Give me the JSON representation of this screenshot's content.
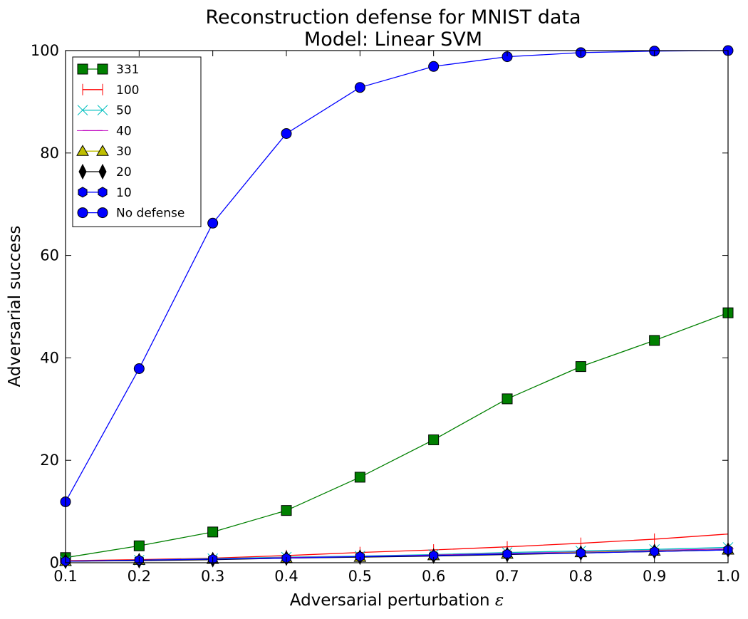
{
  "chart_data": {
    "type": "line",
    "title": "Reconstruction defense for MNIST data",
    "subtitle": "Model: Linear SVM",
    "xlabel": "Adversarial perturbation",
    "xlabel_symbol": "ε",
    "ylabel": "Adversarial success",
    "xlim": [
      0.1,
      1.0
    ],
    "ylim": [
      0,
      100
    ],
    "xticks": [
      "0.1",
      "0.2",
      "0.3",
      "0.4",
      "0.5",
      "0.6",
      "0.7",
      "0.8",
      "0.9",
      "1.0"
    ],
    "yticks": [
      "0",
      "20",
      "40",
      "60",
      "80",
      "100"
    ],
    "grid": false,
    "legend_position": "top-left",
    "x": [
      0.1,
      0.2,
      0.3,
      0.4,
      0.5,
      0.6,
      0.7,
      0.8,
      0.9,
      1.0
    ],
    "series": [
      {
        "name": "331",
        "color": "#008000",
        "marker": "square",
        "values": [
          1.0,
          3.3,
          6.0,
          10.2,
          16.7,
          24.0,
          32.0,
          38.3,
          43.4,
          48.8
        ]
      },
      {
        "name": "100",
        "color": "#ff0000",
        "marker": "vline",
        "values": [
          0.4,
          0.6,
          0.9,
          1.4,
          2.0,
          2.5,
          3.1,
          3.8,
          4.6,
          5.6
        ]
      },
      {
        "name": "50",
        "color": "#00bfbf",
        "marker": "x",
        "values": [
          0.3,
          0.5,
          0.8,
          1.1,
          1.3,
          1.6,
          2.0,
          2.3,
          2.6,
          3.0
        ]
      },
      {
        "name": "40",
        "color": "#bf00bf",
        "marker": "hline",
        "values": [
          0.3,
          0.5,
          0.7,
          1.0,
          1.2,
          1.5,
          1.8,
          2.1,
          2.4,
          2.7
        ]
      },
      {
        "name": "30",
        "color": "#bfbf00",
        "marker": "triangle",
        "values": [
          0.3,
          0.5,
          0.7,
          0.9,
          1.1,
          1.4,
          1.7,
          2.0,
          2.3,
          2.5
        ]
      },
      {
        "name": "20",
        "color": "#000000",
        "marker": "diamond",
        "values": [
          0.3,
          0.4,
          0.6,
          0.9,
          1.1,
          1.3,
          1.6,
          1.9,
          2.2,
          2.5
        ]
      },
      {
        "name": "10",
        "color": "#0000ff",
        "marker": "hexagon",
        "values": [
          0.3,
          0.5,
          0.7,
          0.9,
          1.2,
          1.4,
          1.7,
          1.9,
          2.2,
          2.5
        ]
      },
      {
        "name": "No defense",
        "color": "#0000ff",
        "marker": "circle",
        "values": [
          11.9,
          37.9,
          66.3,
          83.8,
          92.8,
          96.9,
          98.8,
          99.6,
          99.9,
          100.0
        ]
      }
    ]
  }
}
